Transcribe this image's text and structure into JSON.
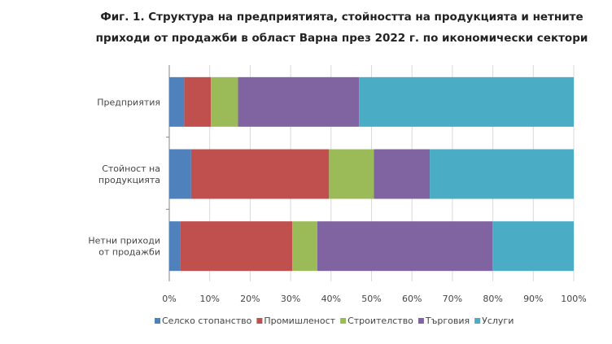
{
  "chart_data": {
    "type": "bar",
    "orientation": "horizontal",
    "stacked": "percent",
    "title": "Фиг. 1. Структура на предприятията, стойността на продукцията и нетните приходи от продажби в област Варна през 2022 г. по икономически сектори",
    "title_lines": [
      "Фиг. 1. Структура на предприятията, стойността на продукцията и нетните",
      "приходи от продажби в област Варна през 2022 г. по икономически сектори"
    ],
    "categories": [
      [
        "Предприятия"
      ],
      [
        "Стойност на",
        "продукцията"
      ],
      [
        "Нетни приходи",
        "от продажби"
      ]
    ],
    "series": [
      {
        "name": "Селско стопанство",
        "color": "#4F81BD",
        "values": [
          3.7,
          5.4,
          2.8
        ]
      },
      {
        "name": "Промишленост",
        "color": "#C0504D",
        "values": [
          6.6,
          34.1,
          27.6
        ]
      },
      {
        "name": "Строителство",
        "color": "#9BBB59",
        "values": [
          6.7,
          11.1,
          6.2
        ]
      },
      {
        "name": "Търговия",
        "color": "#8064A2",
        "values": [
          29.9,
          13.8,
          43.3
        ]
      },
      {
        "name": "Услуги",
        "color": "#4BACC6",
        "values": [
          53.1,
          35.6,
          20.1
        ]
      }
    ],
    "xlim": [
      0,
      100
    ],
    "xticks": [
      "0%",
      "10%",
      "20%",
      "30%",
      "40%",
      "50%",
      "60%",
      "70%",
      "80%",
      "90%",
      "100%"
    ],
    "grid": true,
    "legend": "bottom"
  }
}
